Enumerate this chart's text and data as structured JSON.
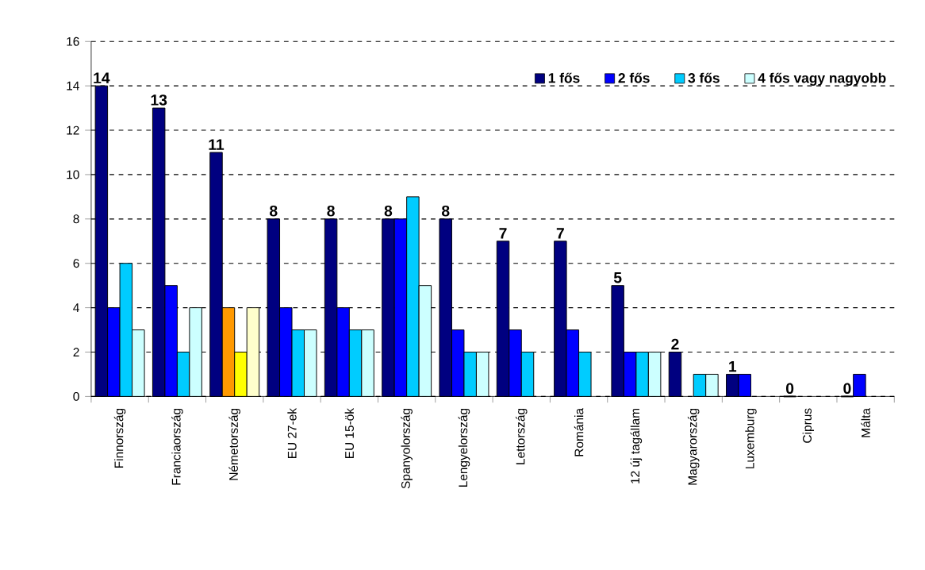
{
  "chart_data": {
    "type": "bar",
    "categories": [
      "Finnország",
      "Franciaország",
      "Németország",
      "EU 27-ek",
      "EU 15-ök",
      "Spanyolország",
      "Lengyelország",
      "Lettország",
      "Románia",
      "12 új tagállam",
      "Magyarország",
      "Luxemburg",
      "Ciprus",
      "Málta"
    ],
    "series": [
      {
        "name": "1 fős",
        "color": "#000080",
        "values": [
          14,
          13,
          11,
          8,
          8,
          8,
          8,
          7,
          7,
          5,
          2,
          1,
          0,
          0
        ],
        "value_labels": [
          "14",
          "13",
          "11",
          "8",
          "8",
          "8",
          "8",
          "7",
          "7",
          "5",
          "2",
          "1",
          "0",
          "0"
        ]
      },
      {
        "name": "2 fős",
        "color": "#0000ff",
        "colors": [
          "#0000ff",
          "#0000ff",
          "#ff9900",
          "#0000ff",
          "#0000ff",
          "#0000ff",
          "#0000ff",
          "#0000ff",
          "#0000ff",
          "#0000ff",
          "#0000ff",
          "#0000ff",
          "#0000ff",
          "#0000ff"
        ],
        "values": [
          4,
          5,
          4,
          4,
          4,
          8,
          3,
          3,
          3,
          2,
          null,
          1,
          null,
          1
        ]
      },
      {
        "name": "3 fős",
        "color": "#00ccff",
        "colors": [
          "#00ccff",
          "#00ccff",
          "#ffff00",
          "#00ccff",
          "#00ccff",
          "#00ccff",
          "#00ccff",
          "#00ccff",
          "#00ccff",
          "#00ccff",
          "#00ccff",
          "#00ccff",
          "#00ccff",
          "#00ccff"
        ],
        "values": [
          6,
          2,
          2,
          3,
          3,
          9,
          2,
          2,
          2,
          2,
          1,
          null,
          null,
          null
        ]
      },
      {
        "name": "4 fős vagy nagyobb",
        "color": "#ccffff",
        "colors": [
          "#ccffff",
          "#ccffff",
          "#ffffcc",
          "#ccffff",
          "#ccffff",
          "#ccffff",
          "#ccffff",
          "#ccffff",
          "#ccffff",
          "#ccffff",
          "#ccffff",
          "#ccffff",
          "#ccffff",
          "#ccffff"
        ],
        "values": [
          3,
          4,
          4,
          3,
          3,
          5,
          2,
          null,
          null,
          2,
          1,
          null,
          null,
          null
        ]
      }
    ],
    "ylim": [
      0,
      16
    ],
    "yticks": [
      0,
      2,
      4,
      6,
      8,
      10,
      12,
      14,
      16
    ],
    "grid": "y",
    "legend": "top right"
  }
}
